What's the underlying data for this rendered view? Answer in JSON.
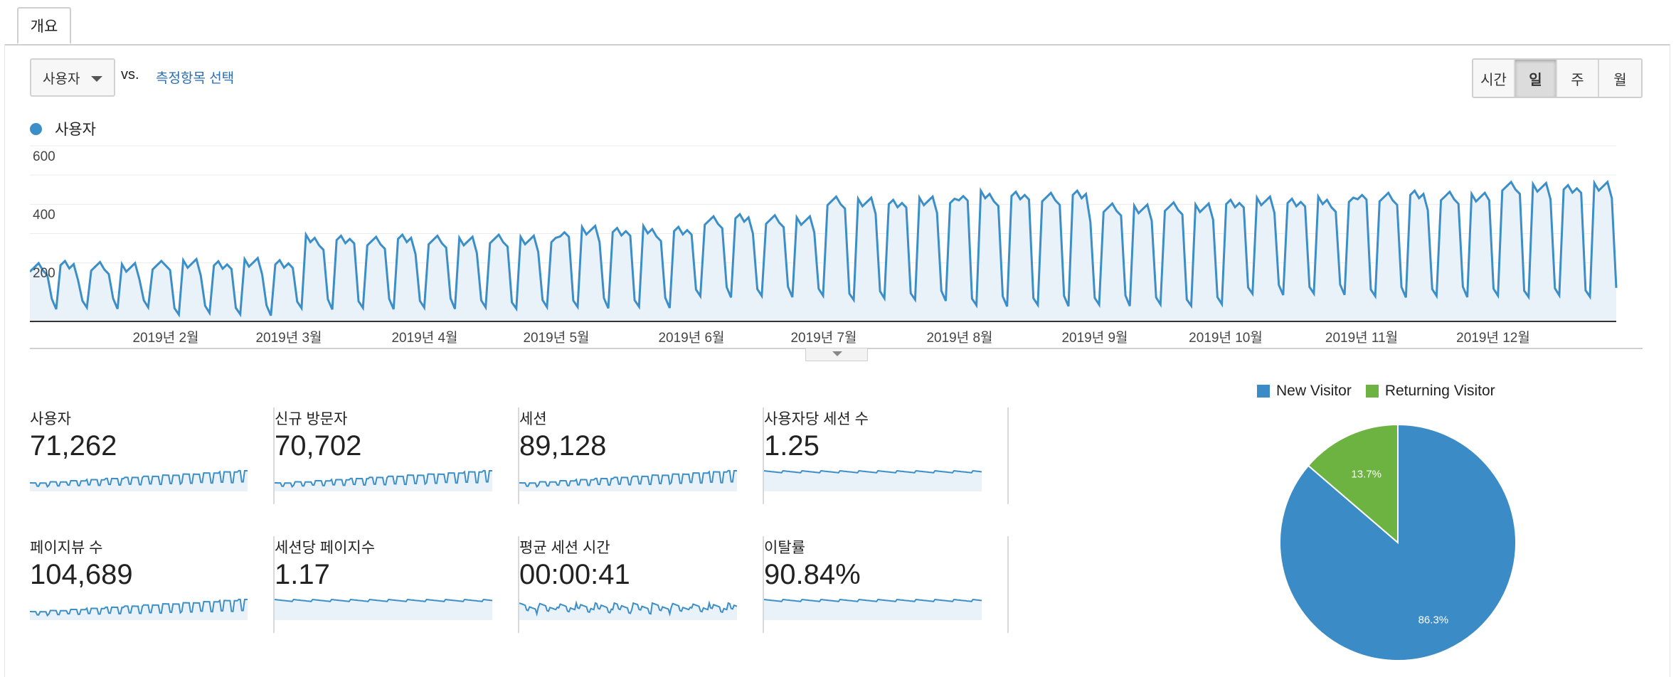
{
  "tabs": {
    "overview": "개요"
  },
  "toolbar": {
    "metric_select": "사용자",
    "vs_label": "vs.",
    "compare_link": "측정항목 선택",
    "periods": [
      {
        "label": "시간",
        "active": false
      },
      {
        "label": "일",
        "active": true
      },
      {
        "label": "주",
        "active": false
      },
      {
        "label": "월",
        "active": false
      }
    ]
  },
  "chart_data": [
    {
      "type": "area",
      "series": [
        {
          "name": "사용자"
        }
      ],
      "y_ticks": [
        "600",
        "400",
        "200"
      ],
      "ylim": [
        0,
        600
      ],
      "x_tick_labels": [
        "2019년 2월",
        "2019년 3월",
        "2019년 4월",
        "2019년 5월",
        "2019년 6월",
        "2019년 7월",
        "2019년 8월",
        "2019년 9월",
        "2019년 10월",
        "2019년 11월",
        "2019년 12월"
      ],
      "daily_users_by_month": [
        {
          "month": "2019-01",
          "weekday_peak": 200,
          "weekend_low": 40
        },
        {
          "month": "2019-02",
          "weekday_peak": 210,
          "weekend_low": 20
        },
        {
          "month": "2019-03",
          "weekday_peak": 290,
          "weekend_low": 40
        },
        {
          "month": "2019-04",
          "weekday_peak": 290,
          "weekend_low": 40
        },
        {
          "month": "2019-05",
          "weekday_peak": 320,
          "weekend_low": 45
        },
        {
          "month": "2019-06",
          "weekday_peak": 360,
          "weekend_low": 80
        },
        {
          "month": "2019-07",
          "weekday_peak": 420,
          "weekend_low": 70
        },
        {
          "month": "2019-08",
          "weekday_peak": 440,
          "weekend_low": 50
        },
        {
          "month": "2019-09",
          "weekday_peak": 400,
          "weekend_low": 50
        },
        {
          "month": "2019-10",
          "weekday_peak": 420,
          "weekend_low": 90
        },
        {
          "month": "2019-11",
          "weekday_peak": 440,
          "weekend_low": 80
        },
        {
          "month": "2019-12",
          "weekday_peak": 470,
          "weekend_low": 80
        }
      ],
      "grid": true,
      "color": "#3b8ec7"
    },
    {
      "type": "pie",
      "slices": [
        {
          "name": "New Visitor",
          "value": 86.3,
          "label": "86.3%",
          "color": "#3a8bc6"
        },
        {
          "name": "Returning Visitor",
          "value": 13.7,
          "label": "13.7%",
          "color": "#6cb342"
        }
      ]
    }
  ],
  "kpis": [
    {
      "label": "사용자",
      "value": "71,262",
      "trend": "rising"
    },
    {
      "label": "신규 방문자",
      "value": "70,702",
      "trend": "rising"
    },
    {
      "label": "세션",
      "value": "89,128",
      "trend": "rising"
    },
    {
      "label": "사용자당 세션 수",
      "value": "1.25",
      "trend": "flat"
    },
    {
      "label": "페이지뷰 수",
      "value": "104,689",
      "trend": "rising"
    },
    {
      "label": "세션당 페이지수",
      "value": "1.17",
      "trend": "flat"
    },
    {
      "label": "평균 세션 시간",
      "value": "00:00:41",
      "trend": "noisy"
    },
    {
      "label": "이탈률",
      "value": "90.84%",
      "trend": "flat"
    }
  ],
  "colors": {
    "accent": "#3b8ec7",
    "link": "#2a6db0",
    "returning": "#6cb342"
  }
}
